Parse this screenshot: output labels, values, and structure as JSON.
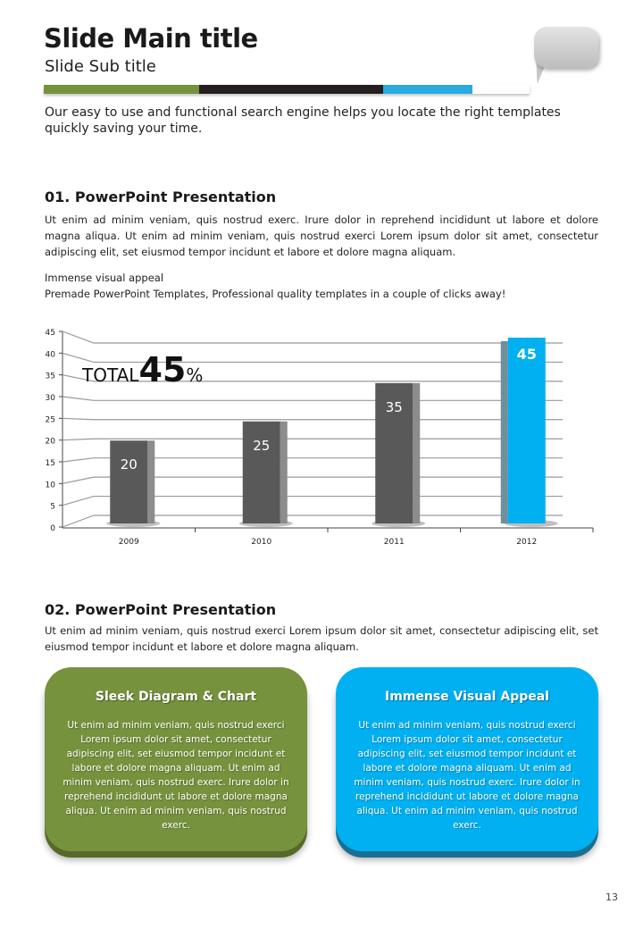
{
  "header": {
    "title": "Slide Main title",
    "subtitle": "Slide Sub title",
    "bar_colors": [
      "#76923c",
      "#231f20",
      "#29aae1",
      "#ffffff"
    ]
  },
  "intro": "Our easy to use and functional search engine helps you locate the right templates quickly saving your time.",
  "section1": {
    "heading": "01. PowerPoint Presentation",
    "body": "Ut enim ad minim veniam, quis nostrud exerc. Irure dolor in reprehend incididunt ut labore et dolore magna aliqua. Ut enim ad minim veniam, quis nostrud exerci  Lorem ipsum dolor sit amet, consectetur adipiscing elit, set eiusmod tempor incidunt et labore et dolore magna aliquam.",
    "line1": "Immense visual appeal",
    "line2": "Premade PowerPoint Templates, Professional quality templates in a couple of clicks away!"
  },
  "chart_data": {
    "type": "bar",
    "categories": [
      "2009",
      "2010",
      "2011",
      "2012"
    ],
    "values": [
      20,
      25,
      35,
      45
    ],
    "ylim": [
      0,
      45
    ],
    "yticks": [
      0,
      5,
      10,
      15,
      20,
      25,
      30,
      35,
      40,
      45
    ],
    "colors": [
      "#595959",
      "#595959",
      "#595959",
      "#00b0f0"
    ],
    "annotation": {
      "prefix": "TOTAL",
      "value": "45",
      "suffix": "%"
    },
    "grid": true
  },
  "section2": {
    "heading": "02. PowerPoint Presentation",
    "body": "Ut enim ad minim veniam, quis nostrud exerci  Lorem ipsum dolor sit amet, consectetur adipiscing elit, set eiusmod tempor incidunt et labore et dolore magna aliquam."
  },
  "cards": [
    {
      "title": "Sleek Diagram & Chart",
      "body": "Ut enim ad minim veniam, quis nostrud exerci  Lorem ipsum dolor sit amet, consectetur adipiscing elit, set eiusmod tempor incidunt et labore et dolore magna aliquam. Ut enim ad minim veniam, quis nostrud exerc. Irure dolor in reprehend incididunt ut labore et dolore magna aliqua. Ut enim ad minim veniam, quis nostrud exerc.",
      "color": "#76923c"
    },
    {
      "title": "Immense Visual Appeal",
      "body": "Ut enim ad minim veniam, quis nostrud exerci  Lorem ipsum dolor sit amet, consectetur adipiscing elit, set eiusmod tempor incidunt et labore et dolore magna aliquam. Ut enim ad minim veniam, quis nostrud exerc. Irure dolor in reprehend incididunt ut labore et dolore magna aliqua. Ut enim ad minim veniam, quis nostrud exerc.",
      "color": "#00b0f0"
    }
  ],
  "page_number": "13"
}
